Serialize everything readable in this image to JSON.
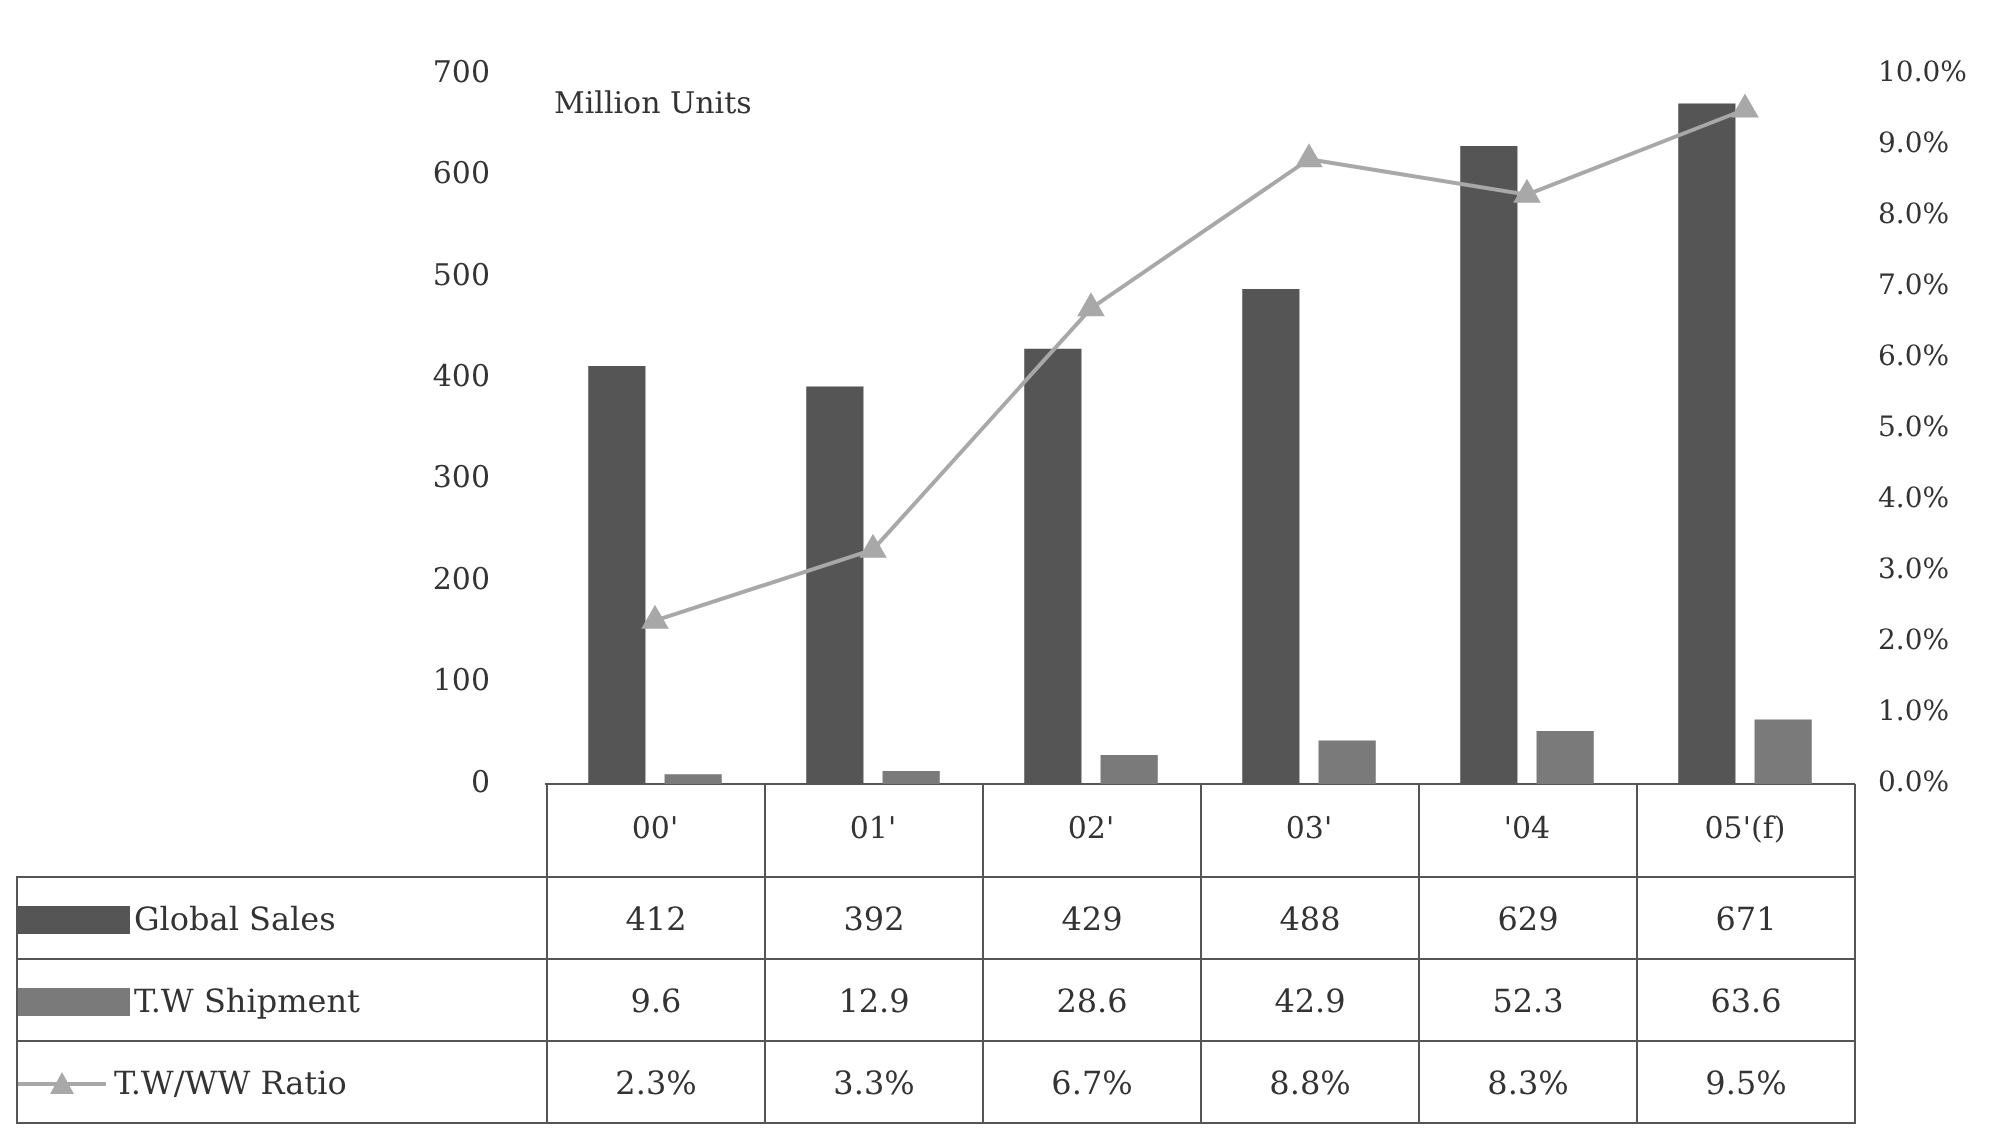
{
  "chart_data": {
    "type": "bar",
    "ylabel": "Million Units",
    "categories": [
      "00'",
      "01'",
      "02'",
      "03'",
      "'04",
      "05'(f)"
    ],
    "series": [
      {
        "name": "Global Sales",
        "color": "#555555",
        "values": [
          412,
          392,
          429,
          488,
          629,
          671
        ],
        "value_labels": [
          "412",
          "392",
          "429",
          "488",
          "629",
          "671"
        ]
      },
      {
        "name": "T.W Shipment",
        "color": "#7a7a7a",
        "values": [
          9.6,
          12.9,
          28.6,
          42.9,
          52.3,
          63.6
        ],
        "value_labels": [
          "9.6",
          "12.9",
          "28.6",
          "42.9",
          "52.3",
          "63.6"
        ]
      },
      {
        "name": "T.W/WW Ratio",
        "type": "line",
        "axis": "y2",
        "color": "#a8a8a8",
        "marker": "triangle",
        "values": [
          2.3,
          3.3,
          6.7,
          8.8,
          8.3,
          9.5
        ],
        "value_labels": [
          "2.3%",
          "3.3%",
          "6.7%",
          "8.8%",
          "8.3%",
          "9.5%"
        ]
      }
    ],
    "ylim": [
      0,
      700
    ],
    "yticks": [
      0,
      100,
      200,
      300,
      400,
      500,
      600,
      700
    ],
    "y2lim": [
      0,
      10
    ],
    "y2ticks": [
      {
        "value": 0,
        "label": "0.0%"
      },
      {
        "value": 1,
        "label": "1.0%"
      },
      {
        "value": 2,
        "label": "2.0%"
      },
      {
        "value": 3,
        "label": "3.0%"
      },
      {
        "value": 4,
        "label": "4.0%"
      },
      {
        "value": 5,
        "label": "5.0%"
      },
      {
        "value": 6,
        "label": "6.0%"
      },
      {
        "value": 7,
        "label": "7.0%"
      },
      {
        "value": 8,
        "label": "8.0%"
      },
      {
        "value": 9,
        "label": "9.0%"
      },
      {
        "value": 10,
        "label": "10.0%"
      }
    ],
    "grid": false,
    "legend": "bottom left",
    "data_labels": true
  }
}
